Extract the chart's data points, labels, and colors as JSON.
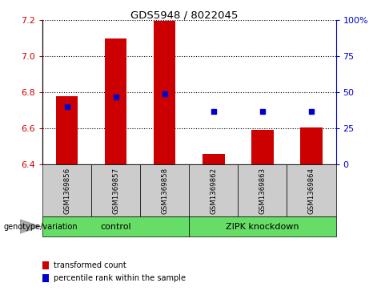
{
  "title": "GDS5948 / 8022045",
  "samples": [
    "GSM1369856",
    "GSM1369857",
    "GSM1369858",
    "GSM1369862",
    "GSM1369863",
    "GSM1369864"
  ],
  "bar_values": [
    6.78,
    7.1,
    7.195,
    6.46,
    6.59,
    6.605
  ],
  "bar_bottom": 6.4,
  "percentile_left_values": [
    6.72,
    6.775,
    6.79,
    6.695,
    6.695,
    6.695
  ],
  "bar_color": "#cc0000",
  "dot_color": "#0000cc",
  "ylim_left": [
    6.4,
    7.2
  ],
  "ylim_right": [
    0,
    100
  ],
  "yticks_left": [
    6.4,
    6.6,
    6.8,
    7.0,
    7.2
  ],
  "yticks_right": [
    0,
    25,
    50,
    75,
    100
  ],
  "group_row_color": "#66dd66",
  "sample_row_color": "#cccccc",
  "legend_bar_label": "transformed count",
  "legend_dot_label": "percentile rank within the sample",
  "genotype_label": "genotype/variation",
  "background_color": "#ffffff",
  "plot_bg_color": "#ffffff",
  "right_axis_color": "#0000cc",
  "left_axis_color": "#cc0000",
  "grid_color": "#000000",
  "bar_width": 0.45,
  "group_labels": [
    "control",
    "ZIPK knockdown"
  ],
  "group_starts": [
    0,
    3
  ],
  "group_ends": [
    3,
    6
  ]
}
